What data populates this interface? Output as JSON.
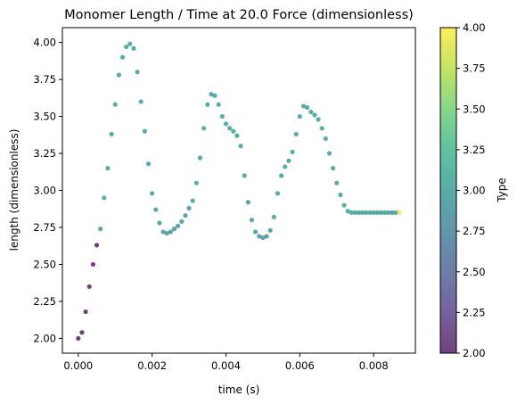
{
  "chart_data": {
    "type": "scatter",
    "title": "Monomer Length / Time at 20.0 Force (dimensionless)",
    "xlabel": "time (s)",
    "ylabel": "length (dimensionless)",
    "xlim": [
      -0.00043,
      0.00913
    ],
    "ylim": [
      1.9,
      4.1
    ],
    "x_ticks": [
      0.0,
      0.002,
      0.004,
      0.006,
      0.008
    ],
    "x_tick_labels": [
      "0.000",
      "0.002",
      "0.004",
      "0.006",
      "0.008"
    ],
    "y_ticks": [
      2.0,
      2.25,
      2.5,
      2.75,
      3.0,
      3.25,
      3.5,
      3.75,
      4.0
    ],
    "y_tick_labels": [
      "2.00",
      "2.25",
      "2.50",
      "2.75",
      "3.00",
      "3.25",
      "3.50",
      "3.75",
      "4.00"
    ],
    "grid": false,
    "colorbar": {
      "label": "Type",
      "range": [
        2.0,
        4.0
      ],
      "colormap": "viridis",
      "alpha": 0.75,
      "ticks": [
        2.0,
        2.25,
        2.5,
        2.75,
        3.0,
        3.25,
        3.5,
        3.75,
        4.0
      ],
      "tick_labels": [
        "2.00",
        "2.25",
        "2.50",
        "2.75",
        "3.00",
        "3.25",
        "3.50",
        "3.75",
        "4.00"
      ]
    },
    "series": [
      {
        "x": [
          0.0,
          0.0001,
          0.0002,
          0.0003,
          0.0004,
          0.0005,
          0.0006,
          0.0007,
          0.0008,
          0.0009,
          0.001,
          0.0011,
          0.0012,
          0.0013,
          0.0014,
          0.0015,
          0.0016,
          0.0017,
          0.0018,
          0.0019,
          0.002,
          0.0021,
          0.0022,
          0.0023,
          0.0024,
          0.0025,
          0.0026,
          0.0027,
          0.0028,
          0.0029,
          0.003,
          0.0031,
          0.0032,
          0.0033,
          0.0034,
          0.0035,
          0.0036,
          0.0037,
          0.0038,
          0.0039,
          0.004,
          0.0041,
          0.0042,
          0.0043,
          0.0044,
          0.0045,
          0.0046,
          0.0047,
          0.0048,
          0.0049,
          0.005,
          0.0051,
          0.0052,
          0.0053,
          0.0054,
          0.0055,
          0.0056,
          0.0057,
          0.0058,
          0.0059,
          0.006,
          0.0061,
          0.0062,
          0.0063,
          0.0064,
          0.0065,
          0.0066,
          0.0067,
          0.0068,
          0.0069,
          0.007,
          0.0071,
          0.0072,
          0.0073,
          0.0074,
          0.0075,
          0.0076,
          0.0077,
          0.0078,
          0.0079,
          0.008,
          0.0081,
          0.0082,
          0.0083,
          0.0084,
          0.0085,
          0.0086,
          0.0087
        ],
        "y": [
          2.0,
          2.04,
          2.18,
          2.35,
          2.5,
          2.63,
          2.74,
          2.95,
          3.15,
          3.38,
          3.58,
          3.78,
          3.9,
          3.97,
          3.99,
          3.96,
          3.8,
          3.6,
          3.4,
          3.18,
          2.98,
          2.87,
          2.78,
          2.72,
          2.71,
          2.72,
          2.74,
          2.76,
          2.79,
          2.83,
          2.88,
          2.93,
          3.05,
          3.22,
          3.42,
          3.58,
          3.65,
          3.64,
          3.58,
          3.5,
          3.45,
          3.42,
          3.4,
          3.37,
          3.3,
          3.1,
          2.92,
          2.8,
          2.72,
          2.69,
          2.68,
          2.69,
          2.73,
          2.82,
          2.98,
          3.1,
          3.16,
          3.2,
          3.26,
          3.38,
          3.5,
          3.57,
          3.56,
          3.53,
          3.51,
          3.48,
          3.42,
          3.35,
          3.25,
          3.15,
          3.05,
          2.97,
          2.9,
          2.86,
          2.85,
          2.85,
          2.85,
          2.85,
          2.85,
          2.85,
          2.85,
          2.85,
          2.85,
          2.85,
          2.85,
          2.85,
          2.85,
          2.85
        ],
        "type": [
          2.0,
          2.0,
          2.0,
          2.0,
          2.0,
          2.0,
          3.0,
          3.0,
          3.0,
          3.0,
          3.0,
          3.0,
          3.0,
          3.0,
          3.0,
          3.0,
          3.0,
          3.0,
          3.0,
          3.0,
          3.0,
          3.0,
          2.9,
          2.9,
          2.9,
          2.9,
          2.9,
          2.9,
          2.9,
          2.9,
          2.9,
          3.0,
          3.0,
          3.0,
          3.0,
          3.0,
          3.0,
          3.0,
          3.0,
          3.0,
          3.0,
          3.0,
          3.0,
          3.0,
          3.0,
          3.0,
          2.9,
          2.9,
          2.9,
          2.9,
          2.9,
          2.9,
          2.9,
          3.0,
          3.0,
          3.0,
          3.0,
          3.0,
          3.0,
          3.0,
          3.0,
          3.0,
          3.0,
          3.0,
          3.0,
          3.0,
          3.0,
          3.0,
          3.0,
          3.0,
          3.0,
          3.0,
          3.0,
          3.0,
          3.0,
          3.0,
          3.0,
          3.0,
          3.0,
          3.0,
          3.0,
          3.0,
          3.0,
          3.0,
          3.0,
          3.0,
          3.0,
          4.0
        ]
      }
    ]
  }
}
